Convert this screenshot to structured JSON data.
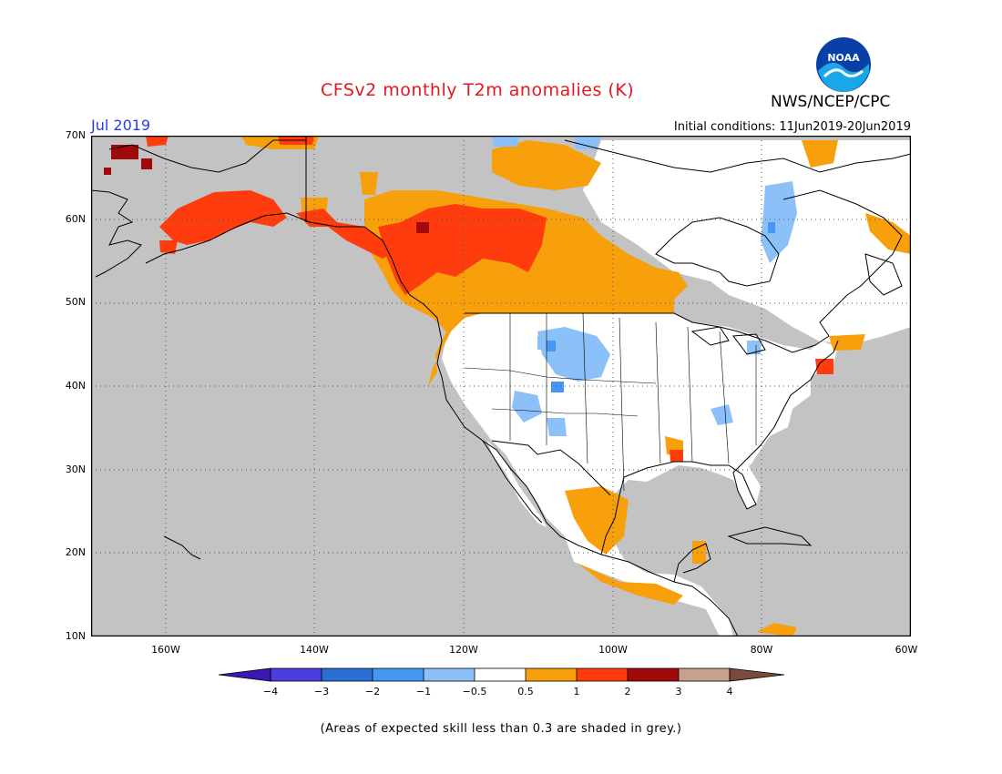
{
  "header": {
    "title": "CFSv2 monthly T2m anomalies (K)",
    "agency": "NWS/NCEP/CPC",
    "month": "Jul 2019",
    "initial_conditions": "Initial conditions: 11Jun2019-20Jun2019",
    "logo_text": "NOAA"
  },
  "map": {
    "lat_labels": [
      "70N",
      "60N",
      "50N",
      "40N",
      "30N",
      "20N",
      "10N"
    ],
    "lon_labels": [
      "160W",
      "140W",
      "120W",
      "100W",
      "80W",
      "60W"
    ],
    "extent": {
      "lon_min": -170,
      "lon_max": -60,
      "lat_min": 10,
      "lat_max": 70
    },
    "colors": {
      "grey": "#c3c3c3",
      "white": "#ffffff",
      "coast": "#000000"
    },
    "anomaly_regions": [
      {
        "name": "alaska-warm",
        "level": "1-2"
      },
      {
        "name": "western-canada-warm",
        "level": "1-2"
      },
      {
        "name": "canada-prairies-warm",
        "level": "0.5-1"
      },
      {
        "name": "us-central-rockies-cool",
        "level": "-1--0.5"
      },
      {
        "name": "hudson-bay-cool",
        "level": "-1--0.5"
      },
      {
        "name": "mexico-coast-warm",
        "level": "0.5-1"
      },
      {
        "name": "new-england-warm",
        "level": "1-2"
      }
    ]
  },
  "colorbar": {
    "tick_labels": [
      "−4",
      "−3",
      "−2",
      "−1",
      "−0.5",
      "0.5",
      "1",
      "2",
      "3",
      "4"
    ],
    "colors": [
      "#3a18b4",
      "#4a3ee0",
      "#2a6ed6",
      "#4696f4",
      "#8cc0f8",
      "#ffffff",
      "#f7a00c",
      "#ff3c0e",
      "#a10a0a",
      "#c8a090",
      "#7a4a3a"
    ]
  },
  "footnote": "(Areas of expected skill less than 0.3 are shaded in grey.)"
}
